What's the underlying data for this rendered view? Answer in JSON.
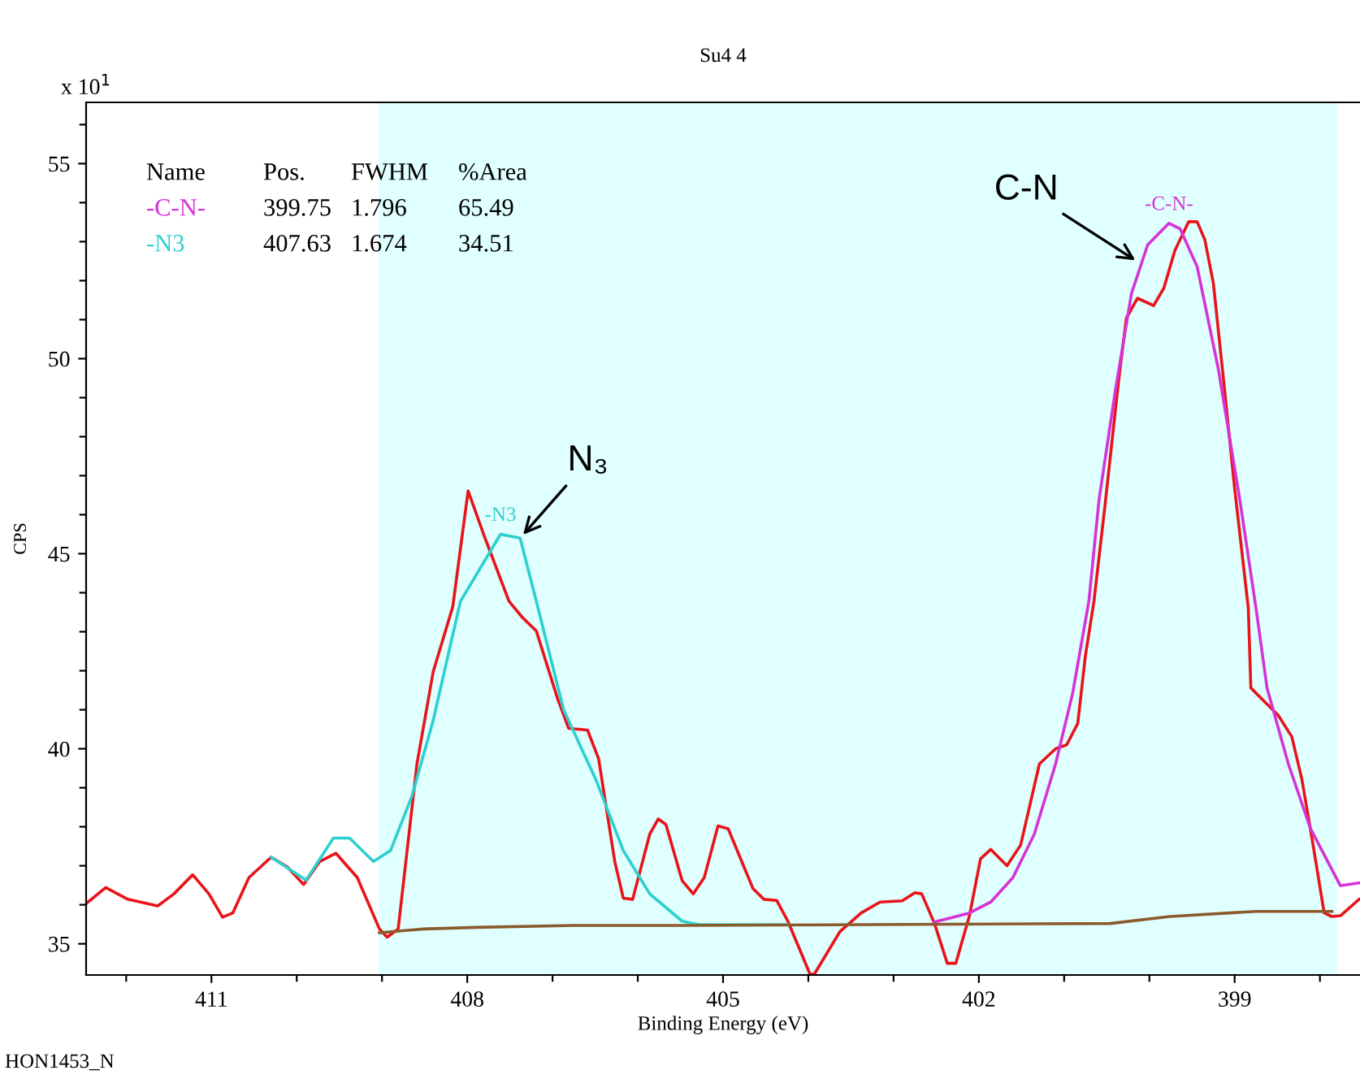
{
  "chart_data": {
    "type": "line",
    "title": "Su4 4",
    "xlabel": "Binding Energy (eV)",
    "ylabel": "CPS",
    "xlim": [
      412.47,
      397.53
    ],
    "ylim": [
      34.2,
      56.57
    ],
    "xticks": [
      {
        "value": 412,
        "label": null
      },
      411,
      {
        "value": 410,
        "label": null
      },
      {
        "value": 409,
        "label": null
      },
      408,
      {
        "value": 407,
        "label": null
      },
      {
        "value": 406,
        "label": null
      },
      405,
      {
        "value": 404,
        "label": null
      },
      {
        "value": 403,
        "label": null
      },
      402,
      {
        "value": 401,
        "label": null
      },
      {
        "value": 400,
        "label": null
      },
      399,
      {
        "value": 398,
        "label": null
      }
    ],
    "yticks": [
      35,
      {
        "value": 36,
        "label": null
      },
      {
        "value": 37,
        "label": null
      },
      {
        "value": 38,
        "label": null
      },
      {
        "value": 39,
        "label": null
      },
      40,
      {
        "value": 41,
        "label": null
      },
      {
        "value": 42,
        "label": null
      },
      {
        "value": 43,
        "label": null
      },
      {
        "value": 44,
        "label": null
      },
      45,
      {
        "value": 46,
        "label": null
      },
      {
        "value": 47,
        "label": null
      },
      {
        "value": 48,
        "label": null
      },
      {
        "value": 49,
        "label": null
      },
      50,
      {
        "value": 51,
        "label": null
      },
      {
        "value": 52,
        "label": null
      },
      {
        "value": 53,
        "label": null
      },
      {
        "value": 54,
        "label": null
      },
      55,
      {
        "value": 56,
        "label": null
      }
    ],
    "bands": [
      {
        "axis": "x",
        "from": 409.04,
        "to": 397.8,
        "color": "#e0ffff"
      }
    ],
    "series": [
      {
        "color": "#e8141a",
        "x": [
          412.47,
          412.24,
          411.98,
          411.63,
          411.44,
          411.22,
          411.03,
          410.87,
          410.75,
          410.56,
          410.3,
          410.11,
          409.92,
          409.73,
          409.54,
          409.29,
          409.03,
          408.94,
          408.81,
          408.59,
          408.4,
          408.17,
          407.99,
          407.8,
          407.51,
          407.35,
          407.19,
          406.94,
          406.81,
          406.59,
          406.46,
          406.27,
          406.17,
          406.06,
          405.86,
          405.76,
          405.67,
          405.48,
          405.35,
          405.22,
          405.06,
          404.94,
          404.65,
          404.52,
          404.37,
          404.24,
          403.98,
          403.93,
          403.63,
          403.38,
          403.16,
          402.9,
          402.75,
          402.67,
          402.52,
          402.37,
          402.27,
          402.11,
          401.98,
          401.86,
          401.67,
          401.51,
          401.29,
          401.1,
          400.97,
          400.84,
          400.75,
          400.65,
          400.52,
          400.36,
          400.27,
          400.14,
          399.95,
          399.83,
          399.7,
          399.54,
          399.44,
          399.35,
          399.25,
          399.13,
          399.0,
          398.84,
          398.81,
          398.65,
          398.49,
          398.33,
          398.21,
          398.08,
          397.95,
          397.86,
          397.76,
          397.54
        ],
        "values": [
          36.03,
          36.44,
          36.14,
          35.97,
          36.28,
          36.77,
          36.28,
          35.68,
          35.79,
          36.7,
          37.22,
          36.97,
          36.52,
          37.11,
          37.32,
          36.7,
          35.38,
          35.17,
          35.38,
          39.61,
          41.97,
          43.64,
          46.61,
          45.45,
          43.78,
          43.36,
          43.02,
          41.28,
          40.52,
          40.48,
          39.75,
          37.11,
          36.17,
          36.14,
          37.81,
          38.2,
          38.06,
          36.62,
          36.28,
          36.7,
          38.02,
          37.95,
          36.42,
          36.14,
          36.11,
          35.58,
          34.22,
          34.22,
          35.31,
          35.79,
          36.07,
          36.1,
          36.31,
          36.28,
          35.52,
          34.5,
          34.5,
          35.72,
          37.18,
          37.42,
          37.0,
          37.53,
          39.61,
          40.0,
          40.1,
          40.65,
          42.39,
          43.78,
          46.25,
          49.45,
          51.04,
          51.55,
          51.36,
          51.81,
          52.78,
          53.51,
          53.51,
          53.05,
          51.94,
          49.45,
          46.67,
          43.61,
          41.56,
          41.21,
          40.86,
          40.31,
          39.2,
          37.53,
          35.79,
          35.7,
          35.72,
          36.14
        ]
      },
      {
        "name": "-C-N-",
        "color": "#d633d6",
        "x": [
          402.52,
          402.11,
          401.86,
          401.6,
          401.35,
          401.1,
          400.9,
          400.71,
          400.59,
          400.4,
          400.21,
          400.02,
          399.77,
          399.64,
          399.44,
          399.19,
          398.94,
          398.75,
          398.62,
          398.37,
          398.11,
          397.76,
          397.54
        ],
        "values": [
          35.56,
          35.79,
          36.07,
          36.7,
          37.81,
          39.61,
          41.42,
          43.78,
          46.39,
          49.17,
          51.67,
          52.92,
          53.47,
          53.33,
          52.36,
          49.72,
          46.39,
          43.61,
          41.56,
          39.61,
          37.95,
          36.49,
          36.56
        ]
      },
      {
        "name": "-N3",
        "color": "#2ecfcf",
        "x": [
          410.3,
          409.89,
          409.57,
          409.38,
          409.1,
          408.9,
          408.65,
          408.4,
          408.08,
          407.61,
          407.38,
          407.19,
          406.87,
          406.49,
          406.17,
          405.86,
          405.48,
          405.29,
          404.24
        ],
        "values": [
          37.22,
          36.63,
          37.71,
          37.71,
          37.11,
          37.39,
          38.78,
          40.72,
          43.78,
          45.5,
          45.4,
          43.78,
          41.0,
          39.2,
          37.39,
          36.28,
          35.58,
          35.49,
          35.49
        ]
      },
      {
        "color": "#8b5a2b",
        "x": [
          409.03,
          408.52,
          407.89,
          406.75,
          405.48,
          400.46,
          399.76,
          398.75,
          397.86
        ],
        "values": [
          35.28,
          35.38,
          35.42,
          35.47,
          35.47,
          35.52,
          35.7,
          35.83,
          35.83
        ]
      }
    ],
    "annotations": [
      "x 10$^{1}$",
      "HON1453_N",
      "Name",
      "Pos.",
      "FWHM",
      "%Area",
      "-C-N-",
      "399.75",
      "1.796",
      "65.49",
      "-N3",
      "407.63",
      "1.674",
      "34.51",
      {
        "text": "N₃",
        "x": 407.38,
        "y": 45.4
      },
      {
        "text": "C-N",
        "x": 400.12,
        "y": 52.46
      }
    ],
    "legend": false,
    "grid": false
  }
}
